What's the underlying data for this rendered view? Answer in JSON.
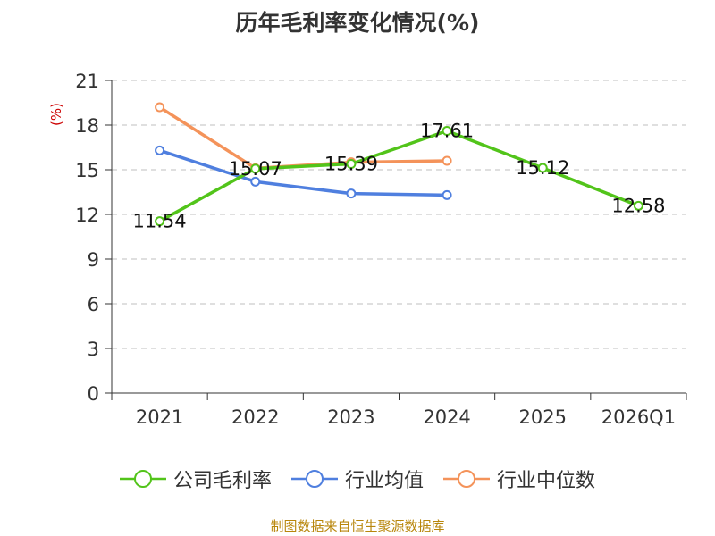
{
  "chart_data": {
    "type": "line",
    "title": "历年毛利率变化情况(%)",
    "ylabel": "(%)",
    "xlabel": "",
    "categories": [
      "2021",
      "2022",
      "2023",
      "2024",
      "2025",
      "2026Q1"
    ],
    "y_ticks": [
      "0",
      "3",
      "6",
      "9",
      "12",
      "15",
      "18",
      "21"
    ],
    "ylim": [
      0,
      21
    ],
    "grid": true,
    "legend_position": "bottom",
    "series": [
      {
        "name": "公司毛利率",
        "color": "#52c41a",
        "values": [
          11.54,
          15.07,
          15.39,
          17.61,
          15.12,
          12.58
        ],
        "labels": [
          "11.54",
          "15.07",
          "15.39",
          "17.61",
          "15.12",
          "12.58"
        ]
      },
      {
        "name": "行业均值",
        "color": "#4f7fdf",
        "values": [
          16.3,
          14.2,
          13.4,
          13.3,
          null,
          null
        ]
      },
      {
        "name": "行业中位数",
        "color": "#f4935a",
        "values": [
          19.2,
          15.1,
          15.5,
          15.6,
          null,
          null
        ]
      }
    ]
  },
  "legend": {
    "items": [
      {
        "label": "公司毛利率",
        "color": "#52c41a"
      },
      {
        "label": "行业均值",
        "color": "#4f7fdf"
      },
      {
        "label": "行业中位数",
        "color": "#f4935a"
      }
    ]
  },
  "footer": {
    "source": "制图数据来自恒生聚源数据库"
  }
}
